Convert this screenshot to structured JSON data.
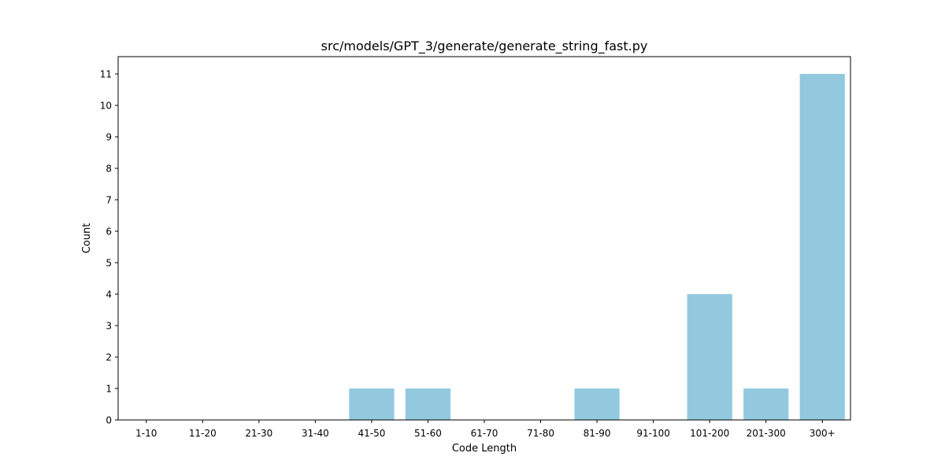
{
  "chart_data": {
    "type": "bar",
    "title": "src/models/GPT_3/generate/generate_string_fast.py",
    "xlabel": "Code Length",
    "ylabel": "Count",
    "categories": [
      "1-10",
      "11-20",
      "21-30",
      "31-40",
      "41-50",
      "51-60",
      "61-70",
      "71-80",
      "81-90",
      "91-100",
      "101-200",
      "201-300",
      "300+"
    ],
    "values": [
      0,
      0,
      0,
      0,
      1,
      1,
      0,
      0,
      1,
      0,
      4,
      1,
      11
    ],
    "yticks": [
      0,
      1,
      2,
      3,
      4,
      5,
      6,
      7,
      8,
      9,
      10,
      11
    ],
    "ylim": [
      0,
      11.55
    ],
    "grid": false,
    "bar_color": "#92c9df"
  }
}
